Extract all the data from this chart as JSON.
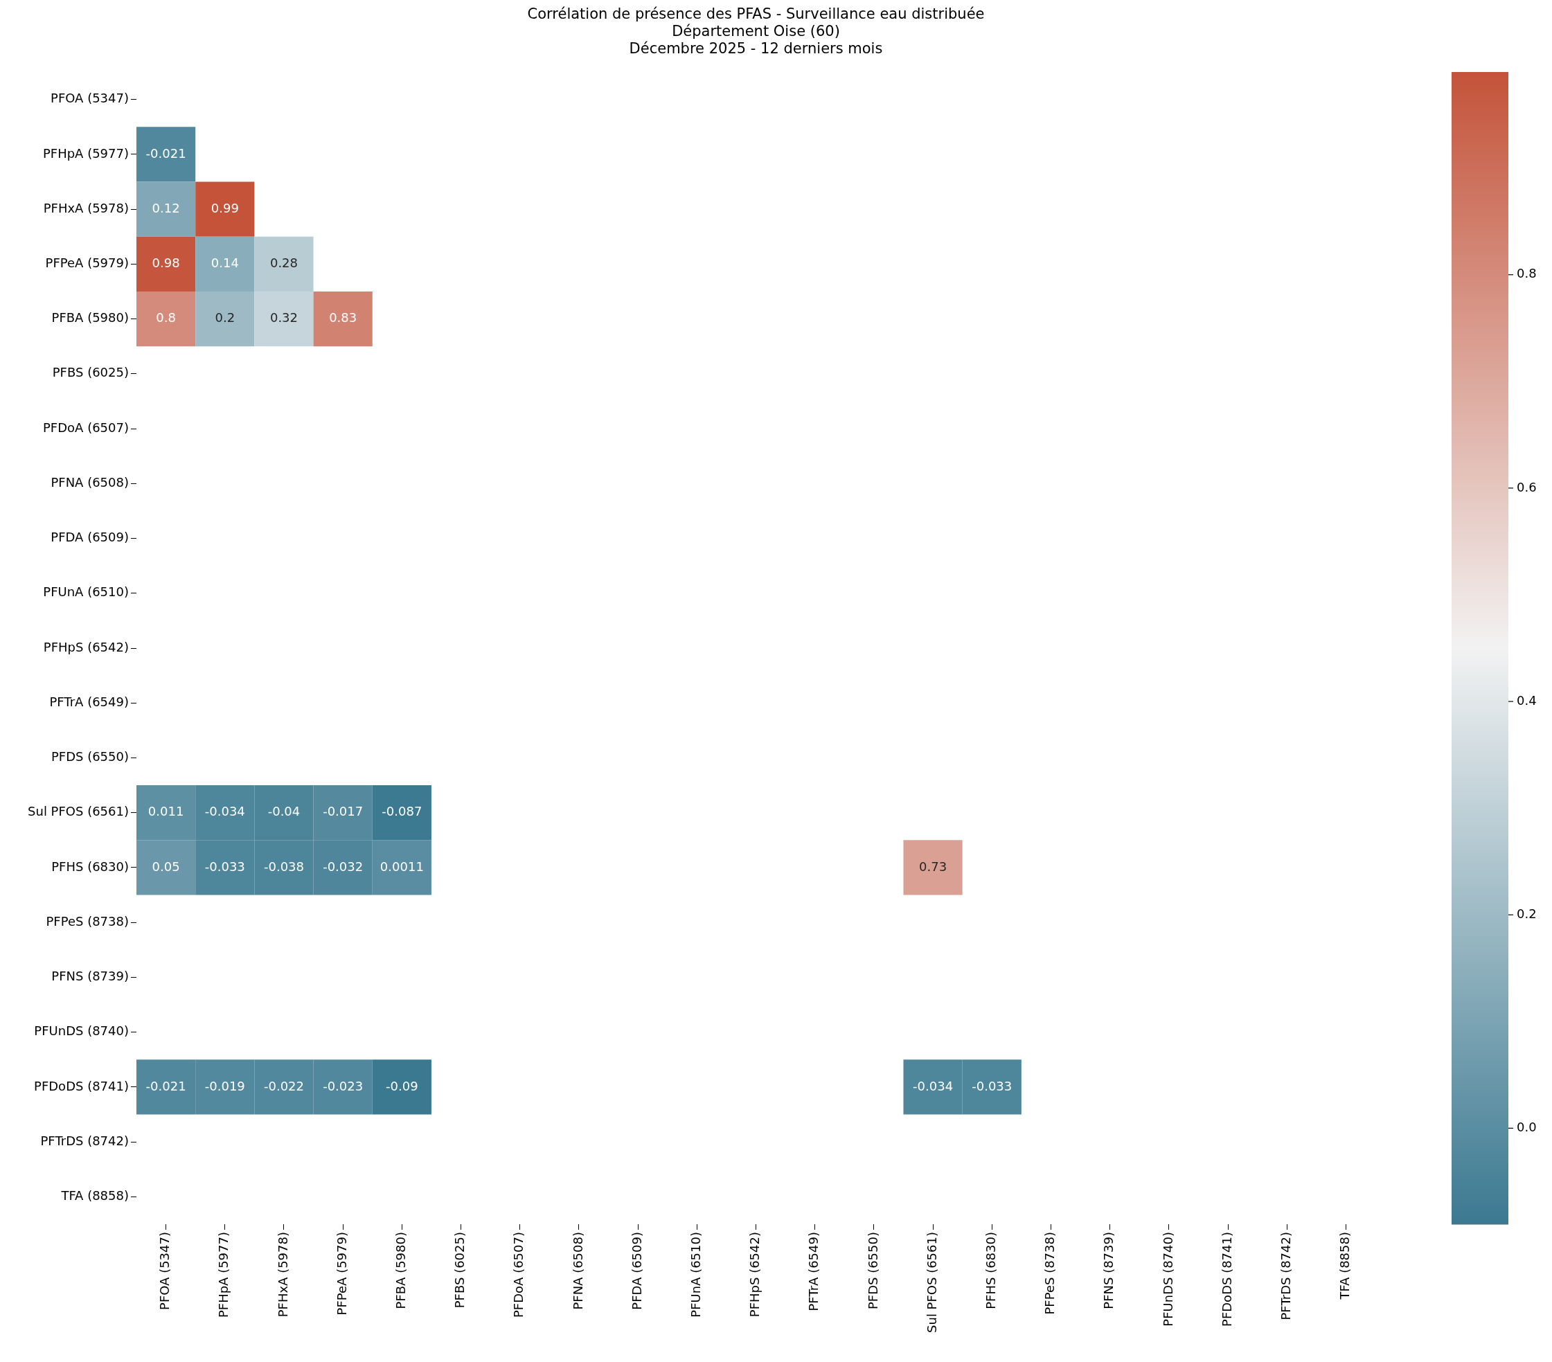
{
  "chart_data": {
    "type": "heatmap",
    "title": "Corrélation de présence des PFAS - Surveillance eau distribuée",
    "subtitle": "Département Oise (60)\nDécembre 2025 - 12 derniers mois",
    "categories": [
      "PFOA (5347)",
      "PFHpA (5977)",
      "PFHxA (5978)",
      "PFPeA (5979)",
      "PFBA (5980)",
      "PFBS (6025)",
      "PFDoA (6507)",
      "PFNA (6508)",
      "PFDA (6509)",
      "PFUnA (6510)",
      "PFHpS (6542)",
      "PFTrA (6549)",
      "PFDS (6550)",
      "Sul PFOS (6561)",
      "PFHS (6830)",
      "PFPeS (8738)",
      "PFNS (8739)",
      "PFUnDS (8740)",
      "PFDoDS (8741)",
      "PFTrDS (8742)",
      "TFA (8858)"
    ],
    "y_categories": [
      "PFOA (5347)",
      "PFHpA (5977)",
      "PFHxA (5978)",
      "PFPeA (5979)",
      "PFBA (5980)",
      "PFBS (6025)",
      "PFDoA (6507)",
      "PFNA (6508)",
      "PFDA (6509)",
      "PFUnA (6510)",
      "PFHpS (6542)",
      "PFTrA (6549)",
      "PFDS (6550)",
      "Sul PFOS (6561)",
      "PFHS (6830)",
      "PFPeS (8738)",
      "PFNS (8739)",
      "PFUnDS (8740)",
      "PFDoDS (8741)",
      "PFTrDS (8742)",
      "TFA (8858)"
    ],
    "cells": [
      [
        null,
        null,
        null,
        null,
        null,
        null,
        null,
        null,
        null,
        null,
        null,
        null,
        null,
        null,
        null,
        null,
        null,
        null,
        null,
        null,
        null
      ],
      [
        -0.021,
        null,
        null,
        null,
        null,
        null,
        null,
        null,
        null,
        null,
        null,
        null,
        null,
        null,
        null,
        null,
        null,
        null,
        null,
        null,
        null
      ],
      [
        0.12,
        0.99,
        null,
        null,
        null,
        null,
        null,
        null,
        null,
        null,
        null,
        null,
        null,
        null,
        null,
        null,
        null,
        null,
        null,
        null,
        null
      ],
      [
        0.98,
        0.14,
        0.28,
        null,
        null,
        null,
        null,
        null,
        null,
        null,
        null,
        null,
        null,
        null,
        null,
        null,
        null,
        null,
        null,
        null,
        null
      ],
      [
        0.8,
        0.2,
        0.32,
        0.83,
        null,
        null,
        null,
        null,
        null,
        null,
        null,
        null,
        null,
        null,
        null,
        null,
        null,
        null,
        null,
        null,
        null
      ],
      [
        null,
        null,
        null,
        null,
        null,
        null,
        null,
        null,
        null,
        null,
        null,
        null,
        null,
        null,
        null,
        null,
        null,
        null,
        null,
        null,
        null
      ],
      [
        null,
        null,
        null,
        null,
        null,
        null,
        null,
        null,
        null,
        null,
        null,
        null,
        null,
        null,
        null,
        null,
        null,
        null,
        null,
        null,
        null
      ],
      [
        null,
        null,
        null,
        null,
        null,
        null,
        null,
        null,
        null,
        null,
        null,
        null,
        null,
        null,
        null,
        null,
        null,
        null,
        null,
        null,
        null
      ],
      [
        null,
        null,
        null,
        null,
        null,
        null,
        null,
        null,
        null,
        null,
        null,
        null,
        null,
        null,
        null,
        null,
        null,
        null,
        null,
        null,
        null
      ],
      [
        null,
        null,
        null,
        null,
        null,
        null,
        null,
        null,
        null,
        null,
        null,
        null,
        null,
        null,
        null,
        null,
        null,
        null,
        null,
        null,
        null
      ],
      [
        null,
        null,
        null,
        null,
        null,
        null,
        null,
        null,
        null,
        null,
        null,
        null,
        null,
        null,
        null,
        null,
        null,
        null,
        null,
        null,
        null
      ],
      [
        null,
        null,
        null,
        null,
        null,
        null,
        null,
        null,
        null,
        null,
        null,
        null,
        null,
        null,
        null,
        null,
        null,
        null,
        null,
        null,
        null
      ],
      [
        null,
        null,
        null,
        null,
        null,
        null,
        null,
        null,
        null,
        null,
        null,
        null,
        null,
        null,
        null,
        null,
        null,
        null,
        null,
        null,
        null
      ],
      [
        0.011,
        -0.034,
        -0.04,
        -0.017,
        -0.087,
        null,
        null,
        null,
        null,
        null,
        null,
        null,
        null,
        null,
        null,
        null,
        null,
        null,
        null,
        null,
        null
      ],
      [
        0.05,
        -0.033,
        -0.038,
        -0.032,
        0.0011,
        null,
        null,
        null,
        null,
        null,
        null,
        null,
        null,
        0.73,
        null,
        null,
        null,
        null,
        null,
        null,
        null
      ],
      [
        null,
        null,
        null,
        null,
        null,
        null,
        null,
        null,
        null,
        null,
        null,
        null,
        null,
        null,
        null,
        null,
        null,
        null,
        null,
        null,
        null
      ],
      [
        null,
        null,
        null,
        null,
        null,
        null,
        null,
        null,
        null,
        null,
        null,
        null,
        null,
        null,
        null,
        null,
        null,
        null,
        null,
        null,
        null
      ],
      [
        null,
        null,
        null,
        null,
        null,
        null,
        null,
        null,
        null,
        null,
        null,
        null,
        null,
        null,
        null,
        null,
        null,
        null,
        null,
        null,
        null
      ],
      [
        -0.021,
        -0.019,
        -0.022,
        -0.023,
        -0.09,
        null,
        null,
        null,
        null,
        null,
        null,
        null,
        null,
        -0.034,
        -0.033,
        null,
        null,
        null,
        null,
        null,
        null
      ],
      [
        null,
        null,
        null,
        null,
        null,
        null,
        null,
        null,
        null,
        null,
        null,
        null,
        null,
        null,
        null,
        null,
        null,
        null,
        null,
        null,
        null
      ],
      [
        null,
        null,
        null,
        null,
        null,
        null,
        null,
        null,
        null,
        null,
        null,
        null,
        null,
        null,
        null,
        null,
        null,
        null,
        null,
        null,
        null
      ]
    ],
    "clim": [
      -0.09,
      0.99
    ],
    "cticks": [
      {
        "value": 0,
        "label": "0.0"
      },
      0.2,
      0.4,
      0.6,
      0.8
    ],
    "data_labels": true
  }
}
